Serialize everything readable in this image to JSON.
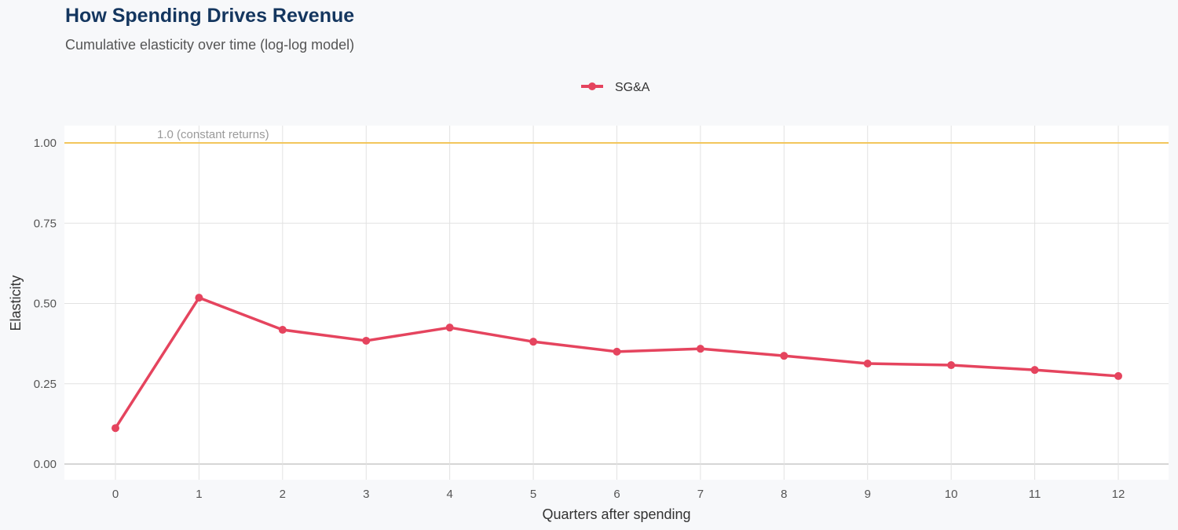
{
  "header": {
    "title": "How Spending Drives Revenue",
    "subtitle": "Cumulative elasticity over time (log-log model)"
  },
  "chart_data": {
    "type": "line",
    "title": "How Spending Drives Revenue",
    "subtitle": "Cumulative elasticity over time (log-log model)",
    "xlabel": "Quarters after spending",
    "ylabel": "Elasticity",
    "x": [
      0,
      1,
      2,
      3,
      4,
      5,
      6,
      7,
      8,
      9,
      10,
      11,
      12
    ],
    "series": [
      {
        "name": "SG&A",
        "color": "#e5445e",
        "values": [
          0.112,
          0.518,
          0.418,
          0.384,
          0.425,
          0.381,
          0.35,
          0.359,
          0.337,
          0.313,
          0.308,
          0.293,
          0.274
        ]
      }
    ],
    "xlim": [
      -0.6,
      12.6
    ],
    "ylim": [
      -0.05,
      1.05
    ],
    "yticks": [
      "0.00",
      "0.25",
      "0.50",
      "0.75",
      "1.00"
    ],
    "xticks": [
      "0",
      "1",
      "2",
      "3",
      "4",
      "5",
      "6",
      "7",
      "8",
      "9",
      "10",
      "11",
      "12"
    ],
    "reference_line": {
      "y": 1.0,
      "label": "1.0 (constant returns)",
      "color": "#f2c65c"
    },
    "legend_position": "top",
    "grid": true,
    "background": "#f7f8fa"
  }
}
